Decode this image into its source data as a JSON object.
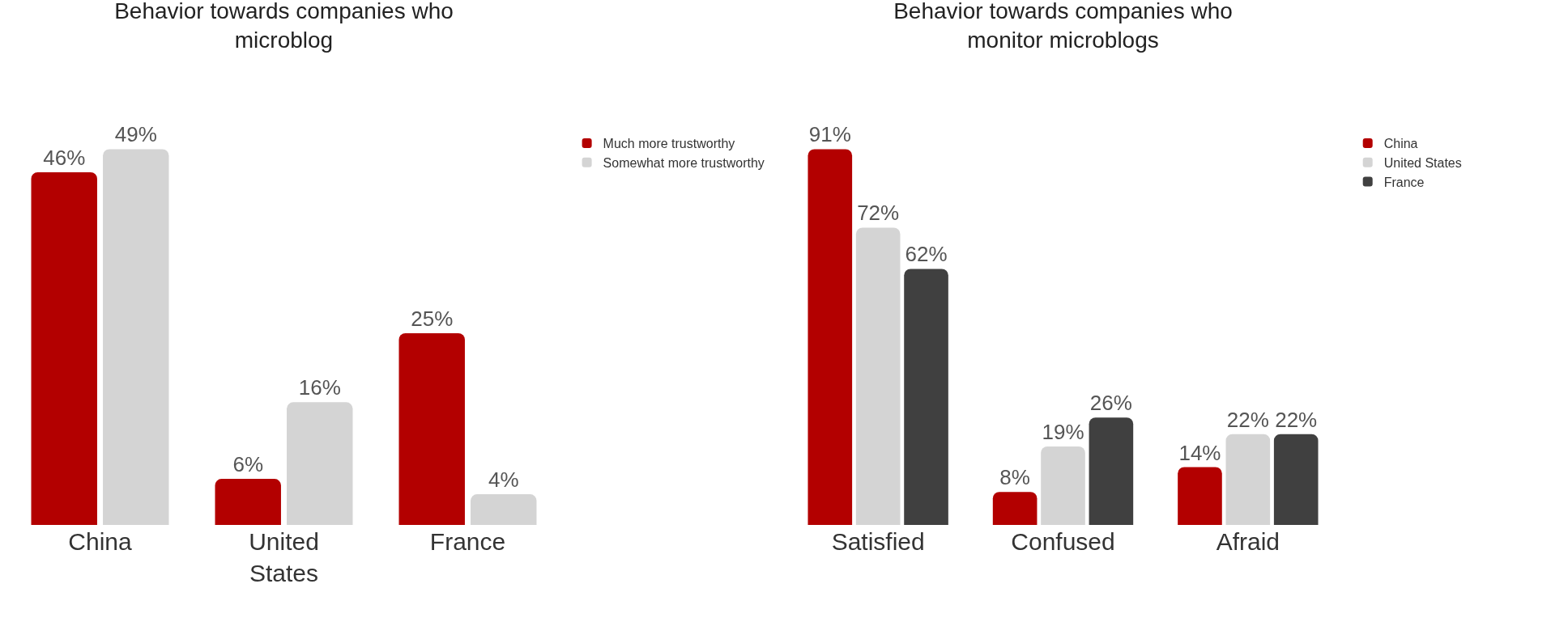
{
  "chart_data": [
    {
      "type": "bar",
      "title": "Behavior towards companies who microblog",
      "categories": [
        "China",
        "United States",
        "France"
      ],
      "series": [
        {
          "name": "Much more trustworthy",
          "color": "#b30000",
          "values": [
            46,
            6,
            25
          ],
          "value_labels": [
            "46%",
            "6%",
            "25%"
          ]
        },
        {
          "name": "Somewhat more trustworthy",
          "color": "#d4d4d4",
          "values": [
            49,
            16,
            4
          ],
          "value_labels": [
            "49%",
            "16%",
            "4%"
          ]
        }
      ],
      "legend": "top right",
      "grid": false
    },
    {
      "type": "bar",
      "title": "Behavior towards companies who monitor microblogs",
      "categories": [
        "Satisfied",
        "Confused",
        "Afraid"
      ],
      "series": [
        {
          "name": "China",
          "color": "#b30000",
          "values": [
            91,
            8,
            14
          ],
          "value_labels": [
            "91%",
            "8%",
            "14%"
          ]
        },
        {
          "name": "United States",
          "color": "#d4d4d4",
          "values": [
            72,
            19,
            22
          ],
          "value_labels": [
            "72%",
            "19%",
            "22%"
          ]
        },
        {
          "name": "France",
          "color": "#404040",
          "values": [
            62,
            26,
            22
          ],
          "value_labels": [
            "62%",
            "26%",
            "22%"
          ]
        }
      ],
      "legend": "top right",
      "grid": false
    }
  ]
}
